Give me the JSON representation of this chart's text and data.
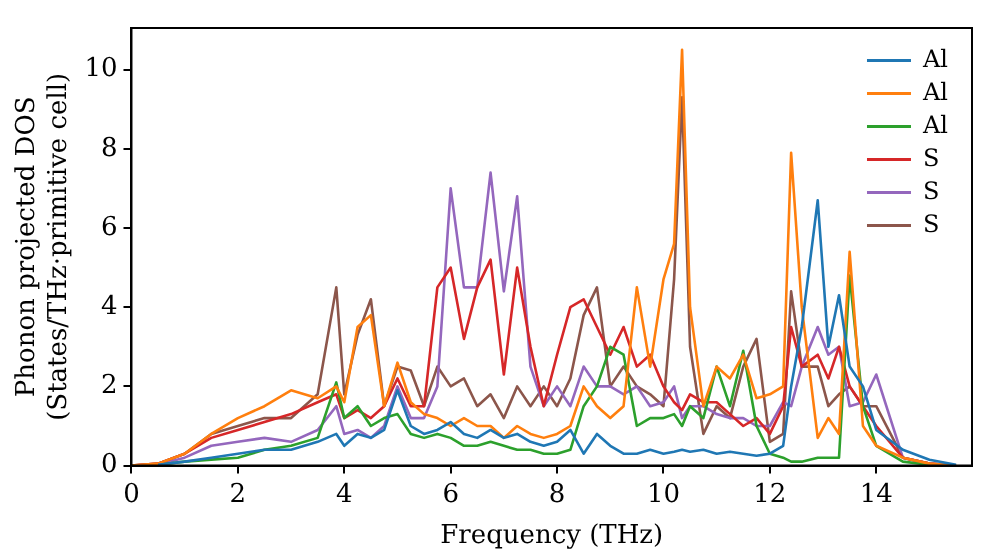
{
  "chart_data": {
    "type": "line",
    "xlabel": "Frequency (THz)",
    "ylabel": "Phonon projected DOS\n(States/THz·primitive cell)",
    "x": [
      0,
      0.5,
      1,
      1.5,
      2,
      2.5,
      3,
      3.5,
      3.85,
      4,
      4.25,
      4.5,
      4.75,
      5,
      5.25,
      5.5,
      5.75,
      6,
      6.25,
      6.5,
      6.75,
      7,
      7.25,
      7.5,
      7.75,
      8,
      8.25,
      8.5,
      8.75,
      9,
      9.25,
      9.5,
      9.75,
      10,
      10.2,
      10.35,
      10.5,
      10.75,
      11,
      11.25,
      11.5,
      11.75,
      12,
      12.25,
      12.4,
      12.6,
      12.9,
      13.1,
      13.3,
      13.5,
      13.75,
      14,
      14.5,
      15,
      15.5
    ],
    "series": [
      {
        "name": "Al",
        "color": "#1f77b4",
        "values": [
          null,
          0.02,
          0.1,
          0.2,
          0.3,
          0.4,
          0.4,
          0.6,
          0.8,
          0.5,
          0.8,
          0.7,
          0.9,
          1.9,
          1.0,
          0.8,
          0.9,
          1.1,
          0.8,
          0.7,
          0.9,
          0.7,
          0.8,
          0.6,
          0.5,
          0.6,
          0.9,
          0.3,
          0.8,
          0.5,
          0.3,
          0.3,
          0.4,
          0.3,
          0.35,
          0.4,
          0.35,
          0.4,
          0.3,
          0.35,
          0.3,
          0.25,
          0.3,
          0.5,
          2.0,
          3.5,
          6.7,
          3.0,
          4.3,
          2.5,
          2.0,
          0.9,
          0.4,
          0.15,
          0.02
        ]
      },
      {
        "name": "Al",
        "color": "#ff7f0e",
        "values": [
          0,
          0.05,
          0.3,
          0.8,
          1.2,
          1.5,
          1.9,
          1.7,
          2.0,
          1.6,
          3.5,
          3.8,
          1.5,
          2.6,
          1.6,
          1.3,
          1.2,
          1.0,
          1.2,
          1.0,
          1.0,
          0.7,
          1.0,
          0.8,
          0.7,
          0.8,
          1.0,
          2.0,
          1.5,
          1.2,
          1.5,
          4.5,
          2.5,
          4.7,
          5.6,
          10.5,
          4.0,
          1.5,
          2.5,
          2.2,
          2.8,
          1.7,
          1.8,
          2.0,
          7.9,
          4.0,
          0.7,
          1.2,
          0.8,
          5.4,
          1.0,
          0.5,
          0.2,
          0.05,
          0
        ]
      },
      {
        "name": "Al",
        "color": "#2ca02c",
        "values": [
          0,
          0.02,
          0.1,
          0.15,
          0.2,
          0.4,
          0.5,
          0.7,
          2.1,
          1.2,
          1.5,
          1.0,
          1.2,
          1.3,
          0.8,
          0.7,
          0.8,
          0.7,
          0.5,
          0.5,
          0.6,
          0.5,
          0.4,
          0.4,
          0.3,
          0.3,
          0.4,
          1.5,
          2.0,
          3.0,
          2.8,
          1.0,
          1.2,
          1.2,
          1.3,
          1.0,
          1.5,
          1.2,
          2.5,
          1.5,
          2.9,
          1.0,
          0.3,
          0.2,
          0.1,
          0.1,
          0.2,
          0.2,
          0.2,
          4.8,
          1.5,
          0.5,
          0.1,
          0.02,
          0
        ]
      },
      {
        "name": "S",
        "color": "#d62728",
        "values": [
          0,
          0.05,
          0.3,
          0.7,
          0.9,
          1.1,
          1.3,
          1.6,
          1.8,
          1.2,
          1.4,
          1.2,
          1.5,
          2.2,
          1.5,
          1.5,
          4.5,
          5.0,
          3.2,
          4.5,
          5.2,
          2.3,
          5.0,
          3.0,
          1.5,
          2.8,
          4.0,
          4.2,
          3.5,
          2.8,
          3.5,
          2.5,
          2.8,
          2.0,
          1.6,
          1.4,
          1.8,
          1.6,
          1.6,
          1.3,
          1.0,
          1.2,
          0.8,
          1.5,
          3.5,
          2.5,
          2.8,
          2.2,
          3.0,
          2.0,
          1.5,
          1.0,
          0.2,
          0.05,
          0
        ]
      },
      {
        "name": "S",
        "color": "#9467bd",
        "values": [
          0,
          0.03,
          0.2,
          0.5,
          0.6,
          0.7,
          0.6,
          0.9,
          1.5,
          0.8,
          0.9,
          0.7,
          1.0,
          2.0,
          1.2,
          1.2,
          2.0,
          7.0,
          4.5,
          4.5,
          7.4,
          4.4,
          6.8,
          2.5,
          1.5,
          2.0,
          1.5,
          2.5,
          2.0,
          2.0,
          1.8,
          2.0,
          1.5,
          1.6,
          2.0,
          1.2,
          1.5,
          1.5,
          1.3,
          1.2,
          1.2,
          1.0,
          1.0,
          1.6,
          1.5,
          2.5,
          3.5,
          2.8,
          3.0,
          1.5,
          1.6,
          2.3,
          0.2,
          0.05,
          0
        ]
      },
      {
        "name": "S",
        "color": "#8c564b",
        "values": [
          0,
          0.05,
          0.3,
          0.8,
          1.0,
          1.2,
          1.2,
          1.8,
          4.5,
          1.8,
          3.3,
          4.2,
          1.5,
          2.5,
          2.4,
          1.5,
          2.5,
          2.0,
          2.2,
          1.5,
          1.8,
          1.2,
          2.0,
          1.5,
          2.0,
          1.5,
          2.2,
          3.8,
          4.5,
          2.0,
          2.5,
          2.0,
          1.8,
          1.5,
          4.7,
          9.3,
          3.0,
          0.8,
          1.5,
          1.2,
          2.5,
          3.2,
          0.6,
          0.8,
          4.4,
          2.5,
          2.5,
          1.5,
          1.8,
          2.0,
          1.5,
          1.5,
          0.2,
          0.05,
          0
        ]
      }
    ],
    "xlim": [
      0,
      15.8
    ],
    "ylim": [
      0,
      11.05
    ],
    "xticks": [
      0,
      2,
      4,
      6,
      8,
      10,
      12,
      14
    ],
    "yticks": [
      0,
      2,
      4,
      6,
      8,
      10
    ],
    "legend": "top right",
    "grid": false,
    "marker": "none",
    "line_style": "solid"
  }
}
